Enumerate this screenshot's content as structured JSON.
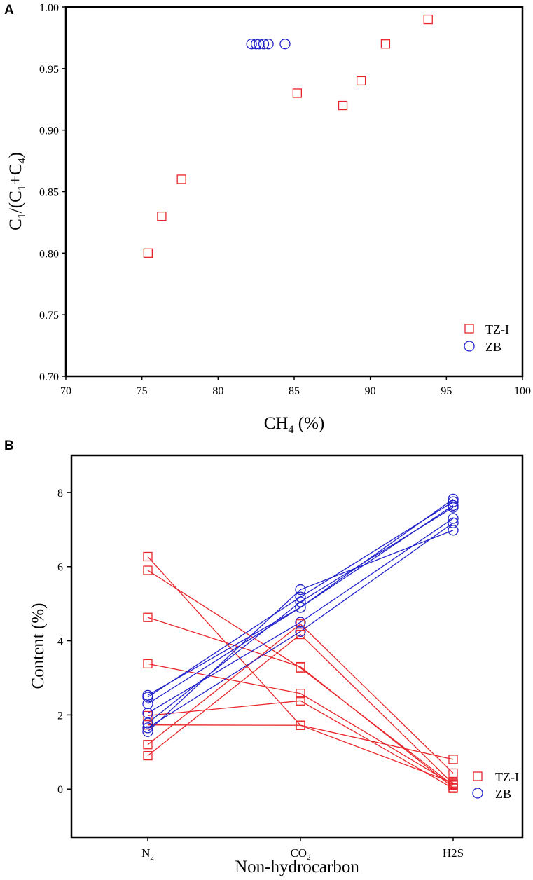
{
  "colors": {
    "tzi": "#e8252a",
    "zb": "#2222cc",
    "axis": "#000000",
    "background": "#ffffff"
  },
  "chart_data": [
    {
      "panel": "A",
      "type": "scatter",
      "xlabel": "CH4 (%)",
      "ylabel": "C1/(C1+C4)",
      "xlim": [
        70,
        100
      ],
      "ylim": [
        0.7,
        1.0
      ],
      "xticks": [
        "70",
        "75",
        "80",
        "85",
        "90",
        "95",
        "100"
      ],
      "yticks": [
        "0.70",
        "0.75",
        "0.80",
        "0.85",
        "0.90",
        "0.95",
        "1.00"
      ],
      "legend_position": "bottom-right",
      "series": [
        {
          "name": "TZ-I",
          "marker": "square",
          "x": [
            75.4,
            76.3,
            77.6,
            85.2,
            88.2,
            89.4,
            91.0,
            93.8
          ],
          "y": [
            0.8,
            0.83,
            0.86,
            0.93,
            0.92,
            0.94,
            0.97,
            0.99
          ]
        },
        {
          "name": "ZB",
          "marker": "circle",
          "x": [
            82.2,
            82.5,
            82.7,
            83.0,
            83.3,
            84.4
          ],
          "y": [
            0.97,
            0.97,
            0.97,
            0.97,
            0.97,
            0.97
          ]
        }
      ]
    },
    {
      "panel": "B",
      "type": "line",
      "xlabel": "Non-hydrocarbon",
      "ylabel": "Content (%)",
      "categories": [
        "N2",
        "CO2",
        "H2S"
      ],
      "ylim": [
        -1.3,
        9.0
      ],
      "yticks": [
        "0",
        "2",
        "4",
        "6",
        "8"
      ],
      "legend_position": "bottom-right",
      "series": [
        {
          "name": "TZ-I",
          "marker": "square",
          "lines": [
            [
              6.27,
              1.72,
              0.17
            ],
            [
              5.9,
              3.27,
              0.1
            ],
            [
              4.63,
              3.3,
              0.04
            ],
            [
              3.38,
              2.58,
              0.12
            ],
            [
              1.98,
              2.38,
              0.02
            ],
            [
              1.73,
              1.72,
              0.8
            ],
            [
              1.2,
              4.45,
              0.43
            ],
            [
              0.9,
              4.17,
              0.14
            ]
          ]
        },
        {
          "name": "ZB",
          "marker": "circle",
          "lines": [
            [
              2.53,
              4.9,
              7.82
            ],
            [
              2.48,
              5.18,
              7.75
            ],
            [
              2.3,
              4.9,
              7.65
            ],
            [
              2.05,
              4.5,
              7.3
            ],
            [
              1.78,
              5.05,
              7.6
            ],
            [
              1.65,
              4.25,
              7.18
            ],
            [
              1.55,
              5.38,
              6.98
            ]
          ]
        }
      ]
    }
  ]
}
